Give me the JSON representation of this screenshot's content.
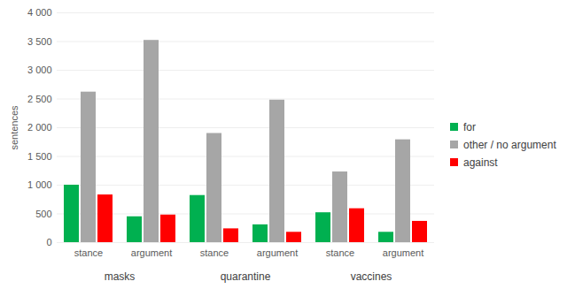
{
  "chart_data": {
    "type": "bar",
    "y_label": "sentences",
    "categories": [
      "stance",
      "argument",
      "stance",
      "argument",
      "stance",
      "argument"
    ],
    "category_groups": [
      "masks",
      "quarantine",
      "vaccines"
    ],
    "series": [
      {
        "name": "for",
        "color": "#00b050",
        "values": [
          1000,
          450,
          820,
          310,
          520,
          180
        ]
      },
      {
        "name": "other / no argument",
        "color": "#a6a6a6",
        "values": [
          2620,
          3520,
          1900,
          2480,
          1230,
          1790
        ]
      },
      {
        "name": "against",
        "color": "#ff0000",
        "values": [
          830,
          480,
          240,
          180,
          590,
          370
        ]
      }
    ],
    "ylim": [
      0,
      4000
    ],
    "yticks": [
      0,
      500,
      {
        "value": 1000,
        "label": "1 000"
      },
      {
        "value": 1500,
        "label": "1 500"
      },
      {
        "value": 2000,
        "label": "2 000"
      },
      {
        "value": 2500,
        "label": "2 500"
      },
      {
        "value": 3000,
        "label": "3 000"
      },
      {
        "value": 3500,
        "label": "3 500"
      },
      {
        "value": 4000,
        "label": "4 000"
      }
    ],
    "grid": true,
    "legend": "right"
  }
}
